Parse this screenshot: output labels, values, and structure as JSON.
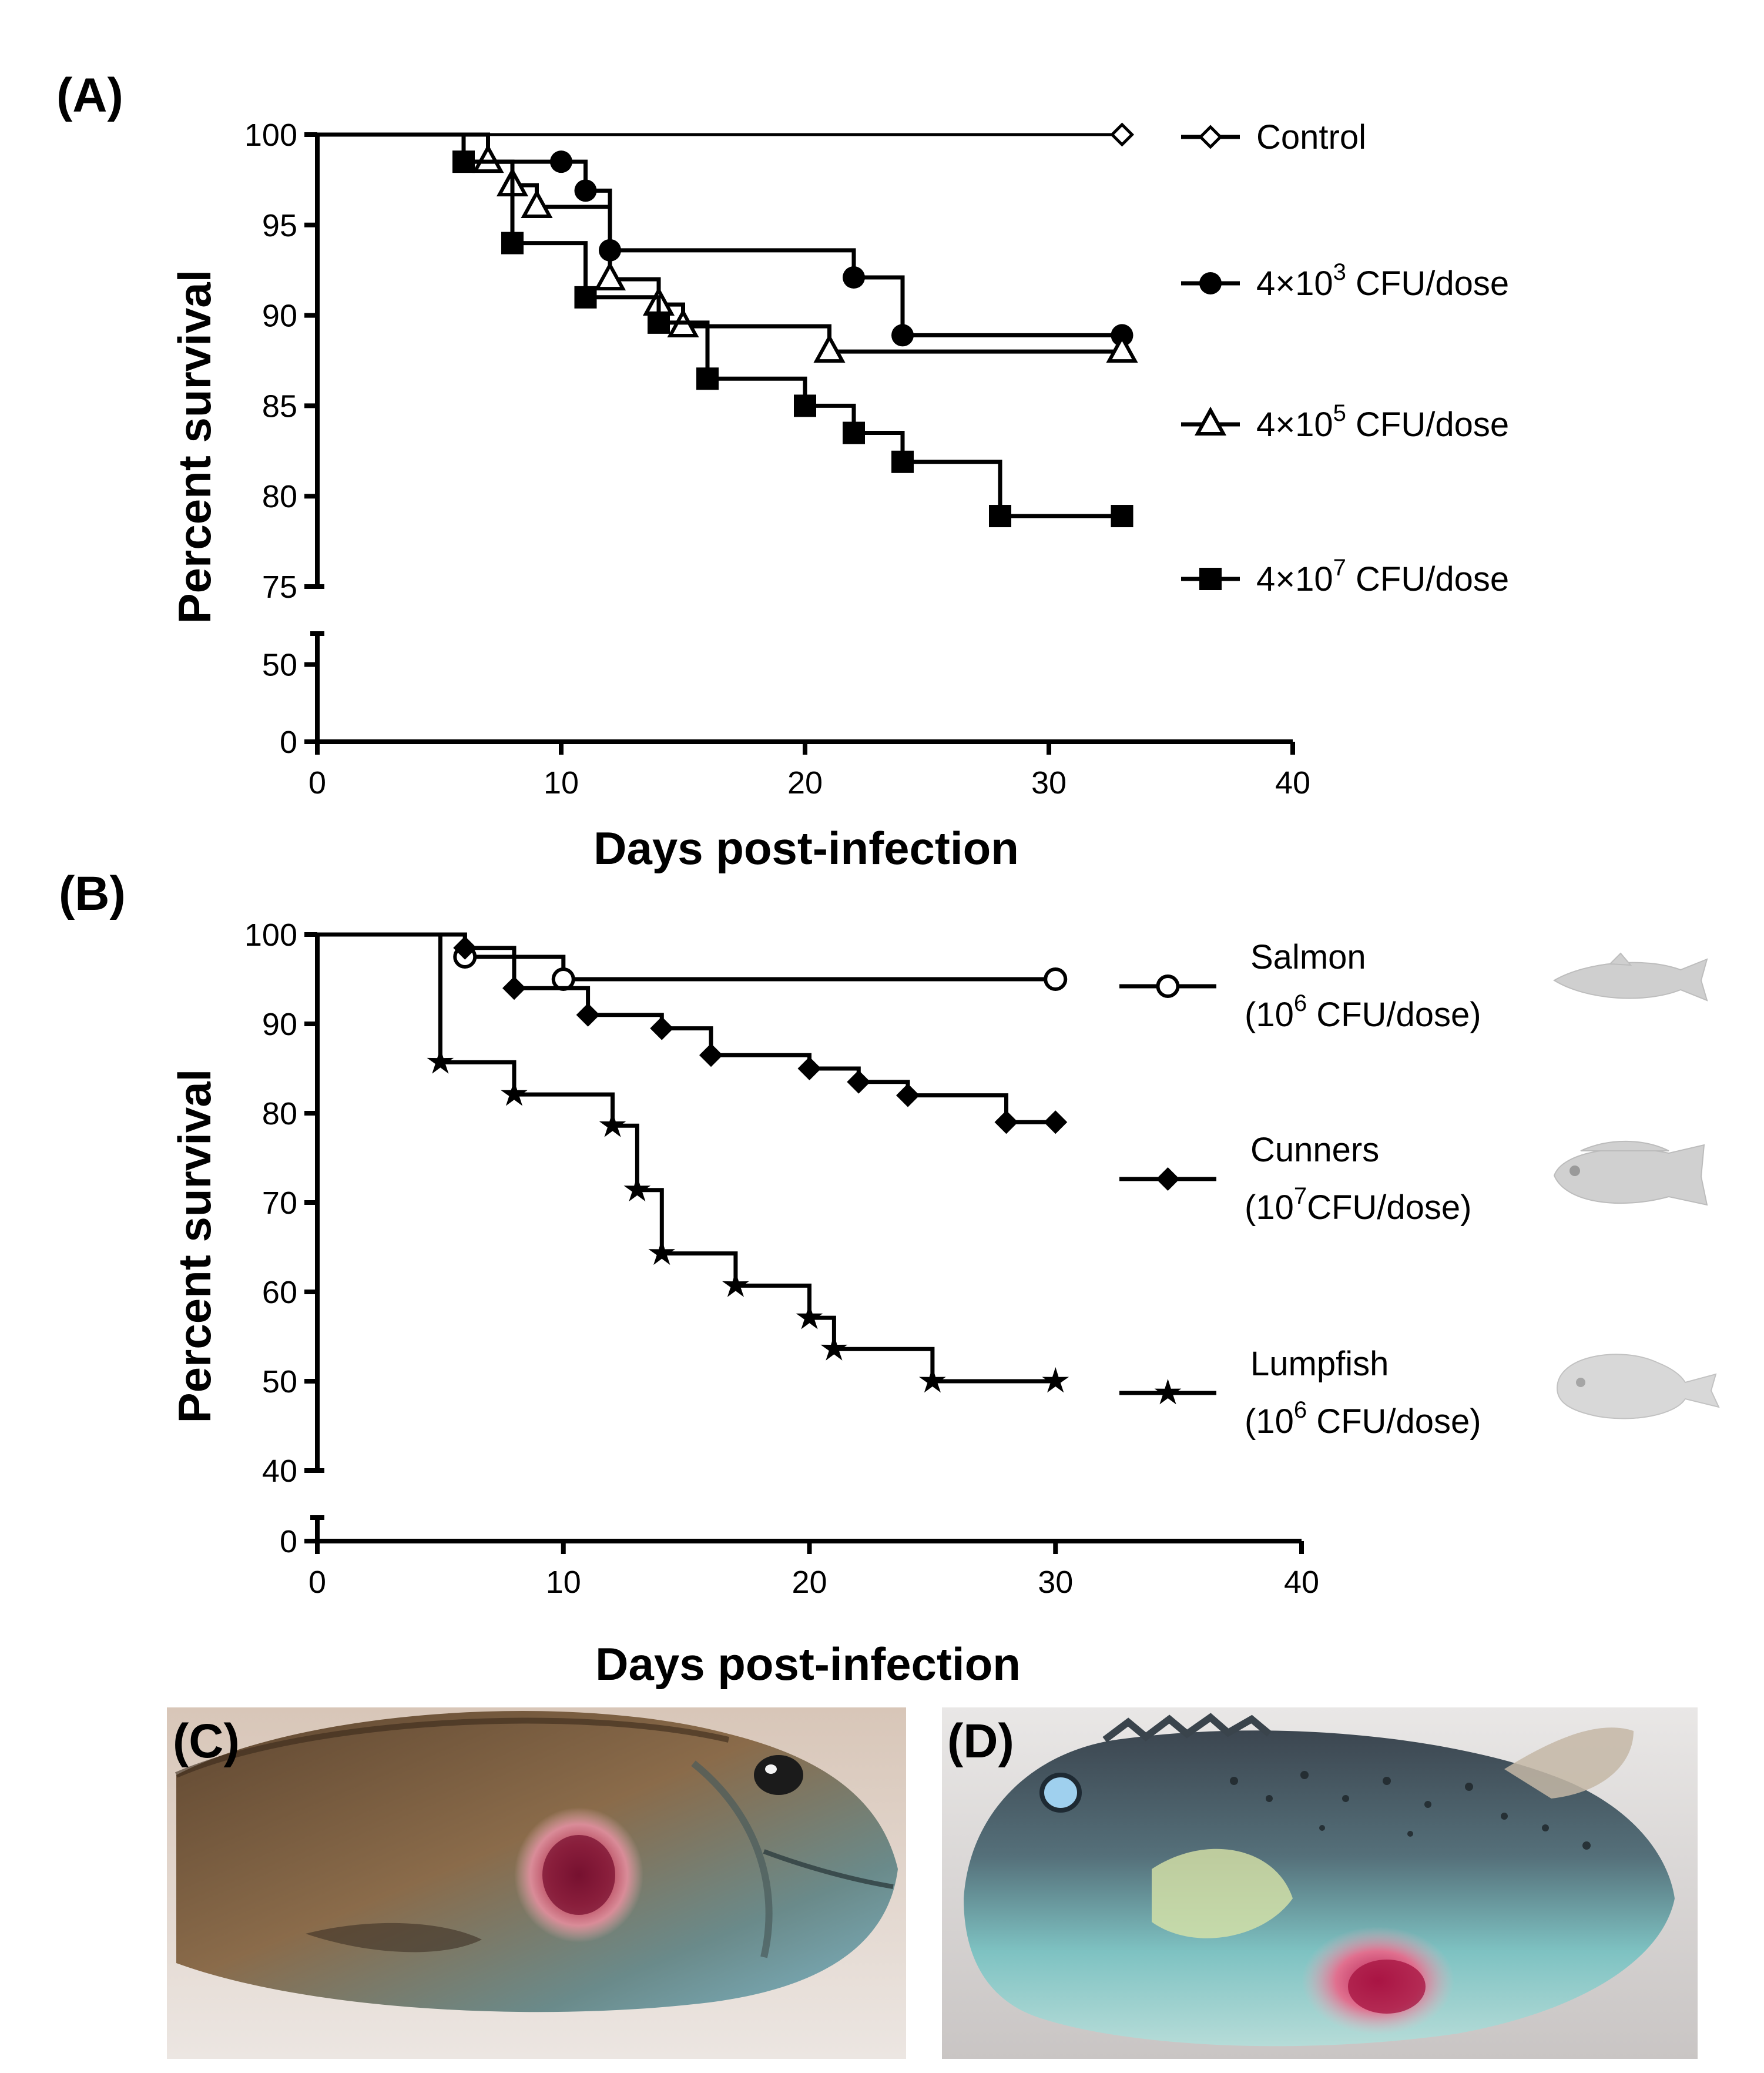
{
  "chart_data": [
    {
      "panel": "(A)",
      "type": "line",
      "subtype": "kaplan-meier",
      "xlabel": "Days post-infection",
      "ylabel": "Percent survival",
      "xlim": [
        0,
        40
      ],
      "ylim_lower": [
        0,
        70
      ],
      "ylim_upper": [
        75,
        100
      ],
      "xticks": [
        "0",
        "10",
        "20",
        "30",
        "40"
      ],
      "yticks_upper": [
        "100",
        "95",
        "90",
        "85",
        "80",
        "75"
      ],
      "yticks_lower": [
        "50",
        "0"
      ],
      "legend": "right",
      "series": [
        {
          "name": "Control",
          "label": "Control",
          "marker": "diamond-open",
          "steps": [
            [
              0,
              100
            ],
            [
              33,
              100
            ]
          ],
          "markers": [
            [
              33,
              100
            ]
          ]
        },
        {
          "name": "4x10^3 CFU/dose",
          "label_prefix": "4×10",
          "label_exp": "3",
          "label_suffix": " CFU/dose",
          "marker": "circle-filled",
          "steps": [
            [
              0,
              100
            ],
            [
              6,
              100
            ],
            [
              6,
              98.5
            ],
            [
              10,
              98.5
            ],
            [
              11,
              98.5
            ],
            [
              11,
              96.9
            ],
            [
              12,
              96.9
            ],
            [
              12,
              93.6
            ],
            [
              22,
              93.6
            ],
            [
              22,
              92.1
            ],
            [
              24,
              92.1
            ],
            [
              24,
              88.9
            ],
            [
              33,
              88.9
            ]
          ],
          "markers": [
            [
              10,
              98.5
            ],
            [
              11,
              96.9
            ],
            [
              12,
              93.6
            ],
            [
              22,
              92.1
            ],
            [
              24,
              88.9
            ],
            [
              33,
              88.9
            ]
          ]
        },
        {
          "name": "4x10^5 CFU/dose",
          "label_prefix": "4×10",
          "label_exp": "5",
          "label_suffix": " CFU/dose",
          "marker": "triangle-open",
          "steps": [
            [
              0,
              100
            ],
            [
              7,
              100
            ],
            [
              7,
              98.5
            ],
            [
              8,
              98.5
            ],
            [
              8,
              97.2
            ],
            [
              9,
              97.2
            ],
            [
              9,
              96.0
            ],
            [
              12,
              96.0
            ],
            [
              12,
              92.0
            ],
            [
              14,
              92.0
            ],
            [
              14,
              90.6
            ],
            [
              15,
              90.6
            ],
            [
              15,
              89.4
            ],
            [
              21,
              89.4
            ],
            [
              21,
              88.0
            ],
            [
              33,
              88.0
            ]
          ],
          "markers": [
            [
              7,
              98.5
            ],
            [
              8,
              97.2
            ],
            [
              9,
              96.0
            ],
            [
              12,
              92.0
            ],
            [
              14,
              90.6
            ],
            [
              15,
              89.4
            ],
            [
              21,
              88.0
            ],
            [
              33,
              88.0
            ]
          ]
        },
        {
          "name": "4x10^7 CFU/dose",
          "label_prefix": "4×10",
          "label_exp": "7",
          "label_suffix": " CFU/dose",
          "marker": "square-filled",
          "steps": [
            [
              0,
              100
            ],
            [
              6,
              100
            ],
            [
              6,
              98.5
            ],
            [
              8,
              98.5
            ],
            [
              8,
              94.0
            ],
            [
              11,
              94.0
            ],
            [
              11,
              91.0
            ],
            [
              14,
              91.0
            ],
            [
              14,
              89.6
            ],
            [
              16,
              89.6
            ],
            [
              16,
              86.5
            ],
            [
              20,
              86.5
            ],
            [
              20,
              85.0
            ],
            [
              22,
              85.0
            ],
            [
              22,
              83.5
            ],
            [
              24,
              83.5
            ],
            [
              24,
              81.9
            ],
            [
              28,
              81.9
            ],
            [
              28,
              78.9
            ],
            [
              33,
              78.9
            ]
          ],
          "markers": [
            [
              6,
              98.5
            ],
            [
              8,
              94.0
            ],
            [
              11,
              91.0
            ],
            [
              14,
              89.6
            ],
            [
              16,
              86.5
            ],
            [
              20,
              85.0
            ],
            [
              22,
              83.5
            ],
            [
              24,
              81.9
            ],
            [
              28,
              78.9
            ],
            [
              33,
              78.9
            ]
          ]
        }
      ]
    },
    {
      "panel": "(B)",
      "type": "line",
      "subtype": "kaplan-meier",
      "xlabel": "Days post-infection",
      "ylabel": "Percent survival",
      "xlim": [
        0,
        40
      ],
      "ylim_lower": [
        0,
        4
      ],
      "ylim_upper": [
        40,
        100
      ],
      "xticks": [
        "0",
        "10",
        "20",
        "30",
        "40"
      ],
      "yticks_upper": [
        "100",
        "90",
        "80",
        "70",
        "60",
        "50",
        "40"
      ],
      "yticks_lower": [
        "0"
      ],
      "legend": "right",
      "series": [
        {
          "name": "Salmon",
          "label_line1": "Salmon",
          "label_prefix": "(10",
          "label_exp": "6",
          "label_suffix": " CFU/dose)",
          "marker": "circle-open",
          "steps": [
            [
              0,
              100
            ],
            [
              6,
              100
            ],
            [
              6,
              97.5
            ],
            [
              10,
              97.5
            ],
            [
              10,
              95.0
            ],
            [
              30,
              95.0
            ]
          ],
          "markers": [
            [
              6,
              97.5
            ],
            [
              10,
              95.0
            ],
            [
              30,
              95.0
            ]
          ]
        },
        {
          "name": "Cunners",
          "label_line1": "Cunners",
          "label_prefix": "(10",
          "label_exp": "7",
          "label_suffix": "CFU/dose)",
          "marker": "diamond-filled",
          "steps": [
            [
              0,
              100
            ],
            [
              6,
              100
            ],
            [
              6,
              98.5
            ],
            [
              8,
              98.5
            ],
            [
              8,
              94.0
            ],
            [
              11,
              94.0
            ],
            [
              11,
              91.0
            ],
            [
              14,
              91.0
            ],
            [
              14,
              89.5
            ],
            [
              16,
              89.5
            ],
            [
              16,
              86.5
            ],
            [
              20,
              86.5
            ],
            [
              20,
              85.0
            ],
            [
              22,
              85.0
            ],
            [
              22,
              83.5
            ],
            [
              24,
              83.5
            ],
            [
              24,
              82.0
            ],
            [
              28,
              82.0
            ],
            [
              28,
              79.0
            ],
            [
              30,
              79.0
            ]
          ],
          "markers": [
            [
              6,
              98.5
            ],
            [
              8,
              94.0
            ],
            [
              11,
              91.0
            ],
            [
              14,
              89.5
            ],
            [
              16,
              86.5
            ],
            [
              20,
              85.0
            ],
            [
              22,
              83.5
            ],
            [
              24,
              82.0
            ],
            [
              28,
              79.0
            ],
            [
              30,
              79.0
            ]
          ]
        },
        {
          "name": "Lumpfish",
          "label_line1": "Lumpfish",
          "label_prefix": "(10",
          "label_exp": "6",
          "label_suffix": " CFU/dose)",
          "marker": "star-filled",
          "steps": [
            [
              0,
              100
            ],
            [
              5,
              100
            ],
            [
              5,
              85.7
            ],
            [
              8,
              85.7
            ],
            [
              8,
              82.1
            ],
            [
              12,
              82.1
            ],
            [
              12,
              78.6
            ],
            [
              13,
              78.6
            ],
            [
              13,
              71.4
            ],
            [
              14,
              71.4
            ],
            [
              14,
              64.3
            ],
            [
              17,
              64.3
            ],
            [
              17,
              60.7
            ],
            [
              20,
              60.7
            ],
            [
              20,
              57.1
            ],
            [
              21,
              57.1
            ],
            [
              21,
              53.6
            ],
            [
              25,
              53.6
            ],
            [
              25,
              50.0
            ],
            [
              30,
              50.0
            ]
          ],
          "markers": [
            [
              5,
              85.7
            ],
            [
              8,
              82.1
            ],
            [
              12,
              78.6
            ],
            [
              13,
              71.4
            ],
            [
              14,
              64.3
            ],
            [
              17,
              60.7
            ],
            [
              20,
              57.1
            ],
            [
              21,
              53.6
            ],
            [
              25,
              50.0
            ],
            [
              30,
              50.0
            ]
          ]
        }
      ]
    }
  ],
  "photos": [
    {
      "label": "(C)",
      "subject": "cunner-fish-with-lesion"
    },
    {
      "label": "(D)",
      "subject": "lumpfish-with-lesion"
    }
  ],
  "colors": {
    "ink": "#000000",
    "background": "#ffffff",
    "fish_silhouette": "#c8c8c8"
  }
}
